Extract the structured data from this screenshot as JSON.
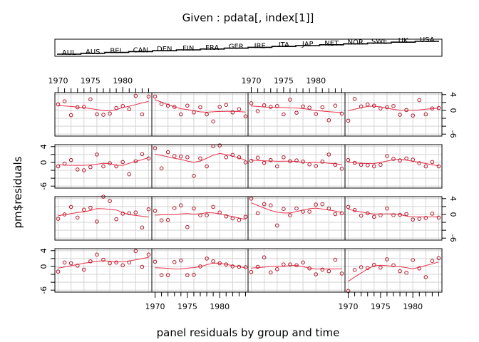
{
  "chart_data": {
    "type": "scatter",
    "title": "Given : pdata[, index[1]]",
    "xlabel": "panel residuals by group and time",
    "ylabel": "pm$residuals",
    "layout": {
      "columns": 4,
      "rows": 4
    },
    "x_range": [
      1969.5,
      1984.5
    ],
    "x_ticks": [
      1970,
      1975,
      1980
    ],
    "y_range": [
      -6.5,
      4.5
    ],
    "y_ticks": [
      4,
      0,
      -6
    ],
    "grid": true,
    "point_color": "#b2182b",
    "line_color": "#e8324a",
    "given_levels": [
      "AUL",
      "AUS",
      "BEL",
      "CAN",
      "DEN",
      "FIN",
      "FRA",
      "GER",
      "IRE",
      "ITA",
      "JAP",
      "NET",
      "NOR",
      "SWE",
      "UK",
      "USA"
    ],
    "x": [
      1970,
      1971,
      1972,
      1973,
      1974,
      1975,
      1976,
      1977,
      1978,
      1979,
      1980,
      1981,
      1982,
      1983,
      1984
    ],
    "series": [
      {
        "values": [
          1.5,
          2.3,
          -1.2,
          0.8,
          0.9,
          2.8,
          -1.0,
          -1.1,
          -0.8,
          0.6,
          1.1,
          0.3,
          3.7,
          -1.0,
          3.5
        ]
      },
      {
        "values": [
          3.5,
          1.6,
          1.2,
          0.9,
          -1.0,
          1.2,
          -0.5,
          0.8,
          -1.0,
          -2.8,
          0.9,
          1.4,
          -0.5,
          0.3,
          -1.5
        ]
      },
      {
        "values": [
          1.8,
          -0.2,
          1.3,
          0.9,
          1.1,
          -1.0,
          2.7,
          -0.6,
          1.0,
          0.7,
          -0.9,
          0.8,
          -2.5,
          1.2,
          -0.8
        ]
      },
      {
        "values": [
          -2.6,
          2.9,
          1.0,
          1.5,
          1.2,
          0.5,
          0.8,
          1.1,
          -1.1,
          0.1,
          -1.3,
          2.6,
          -1.0,
          0.5,
          0.6
        ]
      },
      {
        "values": [
          -1.0,
          -0.3,
          0.6,
          -1.8,
          -2.0,
          -1.2,
          2.0,
          -1.0,
          -0.2,
          -1.0,
          0.1,
          -3.0,
          0.3,
          2.1,
          1.0
        ]
      },
      {
        "values": [
          3.6,
          -1.5,
          2.6,
          1.6,
          1.5,
          1.3,
          -3.4,
          1.0,
          -1.0,
          4.1,
          4.3,
          1.3,
          1.9,
          1.3,
          0.0
        ]
      },
      {
        "values": [
          0.4,
          1.2,
          -0.1,
          0.6,
          -1.0,
          1.3,
          0.3,
          0.5,
          0.2,
          -0.5,
          -0.9,
          0.2,
          2.0,
          -0.6,
          -1.6
        ]
      },
      {
        "values": [
          0.6,
          -0.1,
          -0.6,
          -0.7,
          -1.0,
          -0.6,
          1.6,
          0.9,
          0.5,
          1.0,
          0.7,
          -0.2,
          -1.0,
          0.1,
          -1.0
        ]
      },
      {
        "values": [
          -1.1,
          0.0,
          1.9,
          -0.8,
          1.2,
          1.7,
          -1.8,
          4.5,
          3.4,
          -1.2,
          0.2,
          0.3,
          0.5,
          -3.3,
          1.3
        ]
      },
      {
        "values": [
          0.9,
          -1.5,
          -1.4,
          1.6,
          2.3,
          -3.2,
          1.5,
          -0.2,
          -0.2,
          1.9,
          0.5,
          -0.5,
          -1.0,
          -1.4,
          -0.6
        ]
      },
      {
        "values": [
          4.0,
          0.3,
          2.6,
          2.3,
          -2.8,
          1.4,
          -0.2,
          1.5,
          0.7,
          0.7,
          2.5,
          2.6,
          1.5,
          0.1,
          0.3
        ]
      },
      {
        "values": [
          1.9,
          1.1,
          -0.3,
          0.3,
          -0.6,
          -0.2,
          1.5,
          -0.2,
          -0.1,
          0.1,
          -1.3,
          -1.1,
          -0.9,
          0.2,
          -0.8
        ]
      },
      {
        "values": [
          -1.3,
          1.0,
          0.8,
          0.2,
          -0.8,
          1.3,
          3.0,
          1.7,
          0.8,
          1.0,
          0.3,
          1.0,
          3.9,
          -0.1,
          3.0
        ]
      },
      {
        "values": [
          1.2,
          -2.2,
          -2.2,
          1.1,
          1.5,
          -2.2,
          -2.1,
          0.0,
          2.0,
          1.3,
          0.8,
          0.5,
          0.0,
          -0.1,
          -0.2
        ]
      },
      {
        "values": [
          -1.4,
          -0.1,
          2.3,
          -1.5,
          -0.7,
          0.5,
          0.5,
          0.3,
          1.0,
          -0.5,
          -2.0,
          -0.8,
          -1.2,
          1.7,
          -1.8
        ]
      },
      {
        "values": [
          -6.2,
          -0.9,
          -0.2,
          -0.4,
          0.4,
          -0.3,
          1.8,
          0.3,
          -1.2,
          -1.6,
          1.6,
          -0.5,
          -2.7,
          1.4,
          2.1
        ]
      }
    ]
  }
}
